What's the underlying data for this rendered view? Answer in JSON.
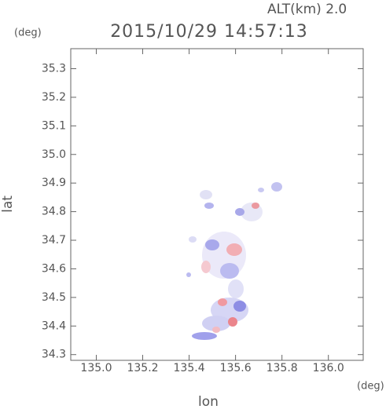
{
  "chart_data": {
    "type": "map",
    "title": "2015/10/29 14:57:13",
    "subtitle": "ALT(km) 2.0",
    "x_label": "lon",
    "y_label": "lat",
    "x_unit": "(deg)",
    "y_unit": "(deg)",
    "xlim": [
      134.89,
      136.15
    ],
    "ylim": [
      34.28,
      35.37
    ],
    "xticks": [
      {
        "value": 135,
        "label": "135.0"
      },
      135.2,
      135.4,
      135.6,
      135.8,
      {
        "value": 136,
        "label": "136.0"
      }
    ],
    "yticks": [
      34.3,
      34.4,
      34.5,
      34.6,
      34.7,
      34.8,
      34.9,
      {
        "value": 35,
        "label": "35.0"
      },
      35.1,
      35.2,
      35.3
    ],
    "grid": false
  }
}
